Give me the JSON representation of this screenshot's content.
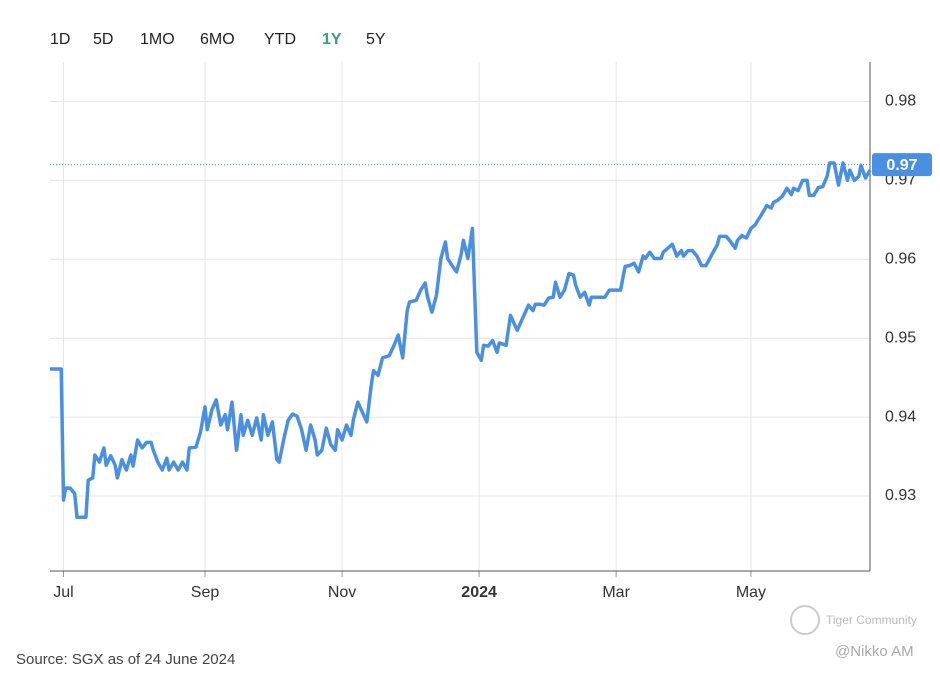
{
  "tabs": [
    "1D",
    "5D",
    "1MO",
    "6MO",
    "YTD",
    "1Y",
    "5Y"
  ],
  "active_tab": "1Y",
  "chart_data": {
    "type": "line",
    "x": [
      0,
      5,
      6,
      7,
      9,
      11,
      12,
      16,
      17,
      19,
      20,
      22,
      24,
      25,
      27,
      29,
      30,
      32,
      34,
      36,
      37,
      39,
      41,
      43,
      45,
      46,
      48,
      50,
      52,
      53,
      55,
      57,
      59,
      61,
      62,
      65,
      67,
      69,
      70,
      72,
      74,
      76,
      78,
      79,
      81,
      83,
      85,
      86,
      88,
      90,
      92,
      94,
      95,
      97,
      99,
      101,
      102,
      104,
      106,
      108,
      110,
      112,
      114,
      116,
      118,
      119,
      121,
      123,
      125,
      127,
      128,
      130,
      132,
      134,
      135,
      137,
      141,
      143,
      144,
      146,
      148,
      151,
      153,
      155,
      157,
      159,
      160,
      163,
      165,
      167,
      168,
      170,
      172,
      174,
      176,
      177,
      179,
      181,
      183,
      184,
      186,
      188,
      190,
      192,
      193,
      195,
      197,
      199,
      200,
      203,
      205,
      207,
      208,
      210,
      213,
      215,
      216,
      218,
      220,
      222,
      224,
      225,
      227,
      229,
      231,
      233,
      234,
      236,
      238,
      240,
      241,
      244,
      247,
      249,
      252,
      254,
      256,
      258,
      260,
      262,
      264,
      265,
      267,
      269,
      272,
      273,
      275,
      277,
      279,
      281,
      282,
      284,
      286,
      288,
      290,
      292,
      295,
      297,
      298,
      301,
      303,
      305,
      306,
      308,
      310,
      312,
      314,
      315,
      317,
      319,
      321,
      322,
      324,
      326,
      328,
      330,
      331,
      333,
      335,
      337,
      338,
      340,
      342,
      344,
      346,
      347,
      349,
      351,
      353,
      355,
      356,
      358,
      360,
      361,
      363,
      365
    ],
    "series": [
      {
        "color": "#4a90e2",
        "values": [
          0.9461,
          0.9461,
          0.9295,
          0.931,
          0.931,
          0.9303,
          0.9273,
          0.9273,
          0.932,
          0.9323,
          0.9352,
          0.9343,
          0.9361,
          0.9339,
          0.9351,
          0.9339,
          0.9323,
          0.9346,
          0.9333,
          0.9352,
          0.9338,
          0.9371,
          0.9361,
          0.9368,
          0.9368,
          0.9358,
          0.9343,
          0.9333,
          0.9348,
          0.9333,
          0.9343,
          0.9333,
          0.9343,
          0.9333,
          0.9361,
          0.9362,
          0.9381,
          0.9413,
          0.9384,
          0.9409,
          0.9422,
          0.939,
          0.9403,
          0.9384,
          0.9419,
          0.9358,
          0.9403,
          0.9377,
          0.9396,
          0.9377,
          0.9399,
          0.9371,
          0.9403,
          0.9377,
          0.9394,
          0.9346,
          0.9343,
          0.9371,
          0.9396,
          0.9404,
          0.9401,
          0.9384,
          0.9358,
          0.939,
          0.9371,
          0.9352,
          0.9358,
          0.9386,
          0.9365,
          0.9358,
          0.9384,
          0.9371,
          0.939,
          0.9377,
          0.9396,
          0.9419,
          0.9394,
          0.9441,
          0.9459,
          0.9453,
          0.9475,
          0.9478,
          0.949,
          0.9504,
          0.9475,
          0.9535,
          0.9546,
          0.9548,
          0.9561,
          0.957,
          0.9553,
          0.9533,
          0.9554,
          0.9601,
          0.9622,
          0.9601,
          0.9592,
          0.9584,
          0.9606,
          0.9624,
          0.9601,
          0.9639,
          0.9482,
          0.9472,
          0.9491,
          0.949,
          0.9497,
          0.9482,
          0.9494,
          0.9491,
          0.9529,
          0.9516,
          0.951,
          0.9523,
          0.9542,
          0.9535,
          0.9543,
          0.9543,
          0.9542,
          0.9551,
          0.9552,
          0.9571,
          0.9552,
          0.9561,
          0.9582,
          0.958,
          0.9567,
          0.9552,
          0.9558,
          0.9542,
          0.9552,
          0.9552,
          0.9552,
          0.9561,
          0.9561,
          0.9561,
          0.9591,
          0.9592,
          0.9595,
          0.9584,
          0.9604,
          0.9601,
          0.9609,
          0.9601,
          0.9601,
          0.9609,
          0.9614,
          0.9619,
          0.9604,
          0.9611,
          0.9604,
          0.9611,
          0.9611,
          0.9604,
          0.9592,
          0.9592,
          0.9608,
          0.9618,
          0.9629,
          0.9629,
          0.9622,
          0.9614,
          0.9624,
          0.963,
          0.9627,
          0.9639,
          0.9644,
          0.9649,
          0.9658,
          0.9668,
          0.9665,
          0.9672,
          0.9675,
          0.968,
          0.969,
          0.9682,
          0.969,
          0.9687,
          0.97,
          0.97,
          0.9681,
          0.9681,
          0.9691,
          0.9692,
          0.9706,
          0.9722,
          0.9722,
          0.9694,
          0.9722,
          0.97,
          0.9713,
          0.97,
          0.9705,
          0.9719,
          0.9703,
          0.9713
        ]
      }
    ],
    "xlim": [
      0,
      365
    ],
    "xticks": [
      {
        "value": 6,
        "label": "Jul"
      },
      {
        "value": 69,
        "label": "Sep"
      },
      {
        "value": 130,
        "label": "Nov"
      },
      {
        "value": 191,
        "label": "2024"
      },
      {
        "value": 252,
        "label": "Mar"
      },
      {
        "value": 312,
        "label": "May"
      }
    ],
    "ylim": [
      0.9205,
      0.985
    ],
    "yticks": [
      0.93,
      0.94,
      0.95,
      0.96,
      0.97,
      0.98
    ],
    "grid": true,
    "current": {
      "value": 0.972,
      "label": "0.97"
    }
  },
  "footer": {
    "source": "Source: SGX as of 24 June 2024",
    "watermark": "Tiger Community",
    "credit": "@Nikko AM"
  }
}
